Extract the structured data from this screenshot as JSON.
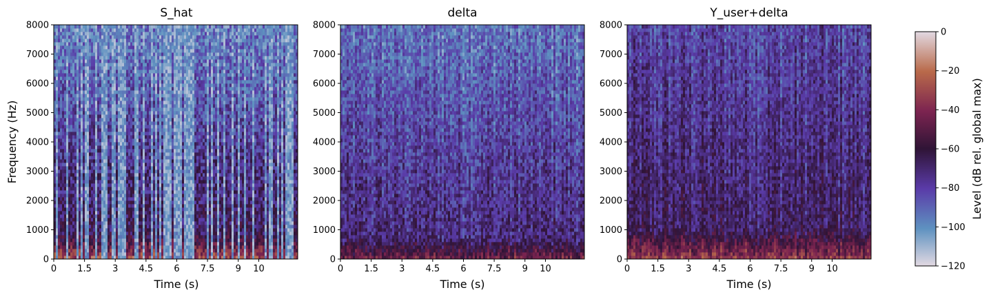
{
  "chart_data": {
    "type": "heatmap",
    "panels": [
      {
        "title": "S_hat",
        "xlabel": "Time (s)",
        "ylabel": "Frequency (Hz)",
        "style": "speech"
      },
      {
        "title": "delta",
        "xlabel": "Time (s)",
        "ylabel": "",
        "style": "noise"
      },
      {
        "title": "Y_user+delta",
        "xlabel": "Time (s)",
        "ylabel": "",
        "style": "mix"
      }
    ],
    "x_range": [
      0,
      11.9
    ],
    "x_ticks": [
      0,
      1.5,
      3,
      4.5,
      6,
      7.5,
      9,
      10
    ],
    "x_tick_labels": [
      "0",
      "1.5",
      "3",
      "4.5",
      "6",
      "7.5",
      "9",
      "10"
    ],
    "y_range": [
      0,
      8000
    ],
    "y_ticks": [
      0,
      1000,
      2000,
      3000,
      4000,
      5000,
      6000,
      7000,
      8000
    ],
    "y_tick_labels": [
      "0",
      "1000",
      "2000",
      "3000",
      "4000",
      "5000",
      "6000",
      "7000",
      "8000"
    ],
    "colorbar": {
      "label": "Level (dB rel. global max)",
      "range": [
        -120,
        0
      ],
      "ticks": [
        0,
        -20,
        -40,
        -60,
        -80,
        -100,
        -120
      ],
      "tick_labels": [
        "0",
        "−20",
        "−40",
        "−60",
        "−80",
        "−100",
        "−120"
      ],
      "colormap": "twilight",
      "colors": [
        "#e2d9e2",
        "#5e91c0",
        "#5a3ba8",
        "#2f1436",
        "#7c2450",
        "#b96a4a",
        "#e2d9e2"
      ]
    }
  }
}
